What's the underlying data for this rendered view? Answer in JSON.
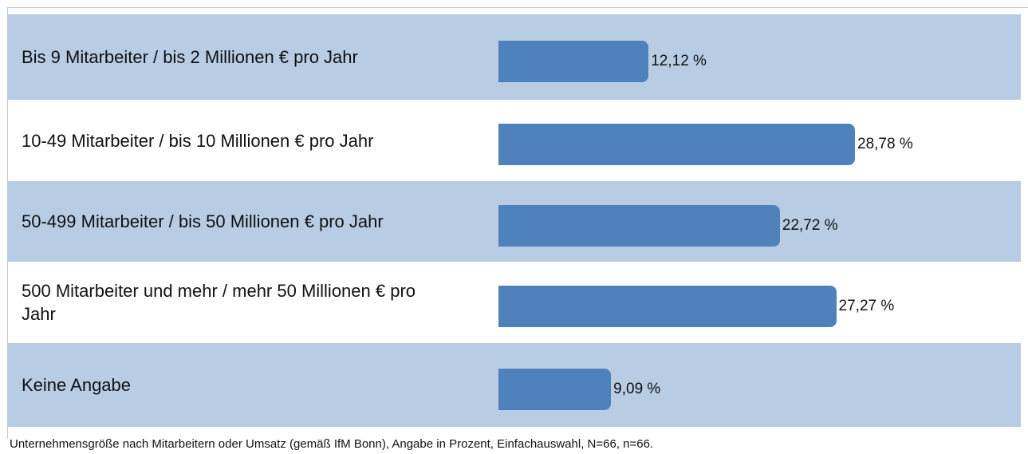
{
  "chart_data": {
    "type": "bar",
    "orientation": "horizontal",
    "categories": [
      "Bis 9 Mitarbeiter / bis 2 Millionen € pro Jahr",
      "10-49 Mitarbeiter / bis 10 Millionen € pro Jahr",
      "50-499 Mitarbeiter / bis 50 Millionen € pro Jahr",
      "500 Mitarbeiter und mehr / mehr 50 Millionen € pro Jahr",
      "Keine Angabe"
    ],
    "values": [
      12.12,
      28.78,
      22.72,
      27.27,
      9.09
    ],
    "value_labels": [
      "12,12 %",
      "28,78 %",
      "22,72 %",
      "27,27 %",
      "9,09 %"
    ],
    "color": "#4f81bd",
    "row_colors": [
      "#b8cce4",
      "#ffffff"
    ],
    "footnote": "Unternehmensgröße nach Mitarbeitern oder Umsatz (gemäß IfM Bonn), Angabe in Prozent, Einfachauswahl, N=66, n=66."
  }
}
